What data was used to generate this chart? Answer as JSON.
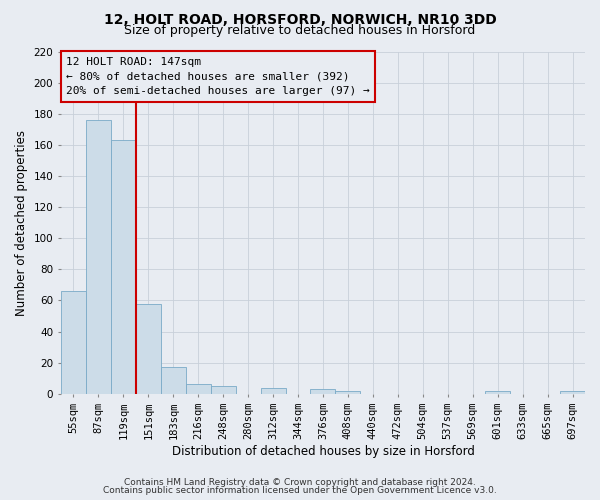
{
  "title_line1": "12, HOLT ROAD, HORSFORD, NORWICH, NR10 3DD",
  "title_line2": "Size of property relative to detached houses in Horsford",
  "xlabel": "Distribution of detached houses by size in Horsford",
  "ylabel": "Number of detached properties",
  "bar_labels": [
    "55sqm",
    "87sqm",
    "119sqm",
    "151sqm",
    "183sqm",
    "216sqm",
    "248sqm",
    "280sqm",
    "312sqm",
    "344sqm",
    "376sqm",
    "408sqm",
    "440sqm",
    "472sqm",
    "504sqm",
    "537sqm",
    "569sqm",
    "601sqm",
    "633sqm",
    "665sqm",
    "697sqm"
  ],
  "bar_values": [
    66,
    176,
    163,
    58,
    17,
    6,
    5,
    0,
    4,
    0,
    3,
    2,
    0,
    0,
    0,
    0,
    0,
    2,
    0,
    0,
    2
  ],
  "bar_color": "#ccdce8",
  "bar_edge_color": "#7aaac8",
  "grid_color": "#c8d0da",
  "background_color": "#e8ecf2",
  "vline_color": "#cc0000",
  "annotation_line1": "12 HOLT ROAD: 147sqm",
  "annotation_line2": "← 80% of detached houses are smaller (392)",
  "annotation_line3": "20% of semi-detached houses are larger (97) →",
  "annotation_box_edge_color": "#cc0000",
  "ylim": [
    0,
    220
  ],
  "yticks": [
    0,
    20,
    40,
    60,
    80,
    100,
    120,
    140,
    160,
    180,
    200,
    220
  ],
  "footnote_line1": "Contains HM Land Registry data © Crown copyright and database right 2024.",
  "footnote_line2": "Contains public sector information licensed under the Open Government Licence v3.0.",
  "title_fontsize": 10,
  "subtitle_fontsize": 9,
  "axis_label_fontsize": 8.5,
  "tick_fontsize": 7.5,
  "annotation_fontsize": 8,
  "footnote_fontsize": 6.5
}
